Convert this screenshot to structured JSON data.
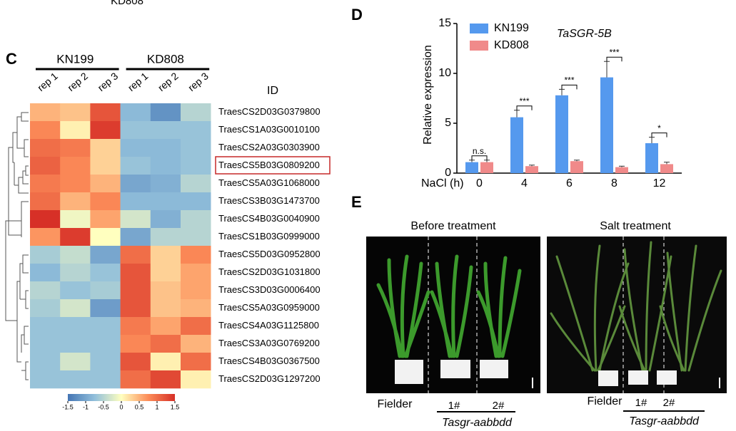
{
  "cropped_top_text": "KD808",
  "chart_data": [
    {
      "type": "heatmap",
      "panel": "C",
      "groups": [
        "KN199",
        "KD808"
      ],
      "columns": [
        "rep 1",
        "rep 2",
        "rep 3",
        "rep 1",
        "rep 2",
        "rep 3"
      ],
      "id_header": "ID",
      "rows": [
        "TraesCS2D03G0379800",
        "TraesCS1A03G0010100",
        "TraesCS2A03G0303900",
        "TraesCS5B03G0809200",
        "TraesCS5A03G1068000",
        "TraesCS3B03G1473700",
        "TraesCS4B03G0040900",
        "TraesCS1B03G0999000",
        "TraesCS5D03G0952800",
        "TraesCS2D03G1031800",
        "TraesCS3D03G0006400",
        "TraesCS5A03G0959000",
        "TraesCS4A03G1125800",
        "TraesCS3A03G0769200",
        "TraesCS4B03G0367500",
        "TraesCS2D03G1297200"
      ],
      "values": [
        [
          0.5,
          0.4,
          1.2,
          -0.8,
          -1.2,
          -0.5
        ],
        [
          0.8,
          0.1,
          1.4,
          -0.7,
          -0.7,
          -0.7
        ],
        [
          1.0,
          0.9,
          0.3,
          -0.8,
          -0.8,
          -0.7
        ],
        [
          1.1,
          0.8,
          0.3,
          -0.7,
          -0.8,
          -0.7
        ],
        [
          0.9,
          0.8,
          0.5,
          -1.0,
          -0.9,
          -0.5
        ],
        [
          1.0,
          0.5,
          0.8,
          -0.8,
          -0.8,
          -0.8
        ],
        [
          1.5,
          -0.1,
          0.6,
          -0.3,
          -0.9,
          -0.5
        ],
        [
          0.7,
          1.4,
          0.0,
          -1.0,
          -0.5,
          -0.5
        ],
        [
          -0.6,
          -0.4,
          -1.0,
          1.0,
          0.3,
          0.8
        ],
        [
          -0.8,
          -0.5,
          -0.7,
          1.2,
          0.3,
          0.6
        ],
        [
          -0.5,
          -0.7,
          -0.6,
          1.2,
          0.4,
          0.6
        ],
        [
          -0.6,
          -0.3,
          -1.1,
          1.2,
          0.4,
          0.5
        ],
        [
          -0.7,
          -0.7,
          -0.7,
          0.9,
          0.6,
          1.0
        ],
        [
          -0.7,
          -0.7,
          -0.7,
          0.8,
          1.0,
          0.5
        ],
        [
          -0.7,
          -0.3,
          -0.7,
          1.2,
          0.1,
          1.0
        ],
        [
          -0.7,
          -0.7,
          -0.7,
          1.0,
          1.3,
          0.1
        ]
      ],
      "highlighted_row": 3,
      "zlim": [
        -1.5,
        1.5
      ],
      "zticks": [
        -1.5,
        -1,
        -0.5,
        0,
        0.5,
        1,
        1.5
      ],
      "colors": [
        "#4575b4",
        "#91bfdb",
        "#ffffbf",
        "#fc8d59",
        "#d73027"
      ]
    },
    {
      "type": "bar",
      "panel": "D",
      "title": "TaSGR-5B",
      "y_label": "Relative expression",
      "x_label": "NaCl (h)",
      "categories": [
        "0",
        "4",
        "6",
        "8",
        "12"
      ],
      "series": [
        {
          "name": "KN199",
          "color": "#5599ee",
          "values": [
            1.1,
            5.6,
            7.8,
            9.6,
            3.0
          ],
          "errors": [
            0.2,
            0.7,
            0.6,
            1.6,
            0.6
          ]
        },
        {
          "name": "KD808",
          "color": "#f08a8a",
          "values": [
            1.1,
            0.7,
            1.2,
            0.6,
            0.9
          ],
          "errors": [
            0.2,
            0.1,
            0.1,
            0.1,
            0.2
          ]
        }
      ],
      "annotations": [
        "n.s.",
        "***",
        "***",
        "***",
        "*"
      ],
      "ylim": [
        0,
        15
      ],
      "yticks": [
        0,
        5,
        10,
        15
      ]
    }
  ],
  "panel_e": {
    "panel": "E",
    "photos": [
      {
        "title": "Before treatment",
        "control": "Fielder",
        "lines": [
          "1#",
          "2#"
        ],
        "genotype": "Tasgr-aabbdd"
      },
      {
        "title": "Salt treatment",
        "control": "Fielder",
        "lines": [
          "1#",
          "2#"
        ],
        "genotype": "Tasgr-aabbdd"
      }
    ]
  }
}
